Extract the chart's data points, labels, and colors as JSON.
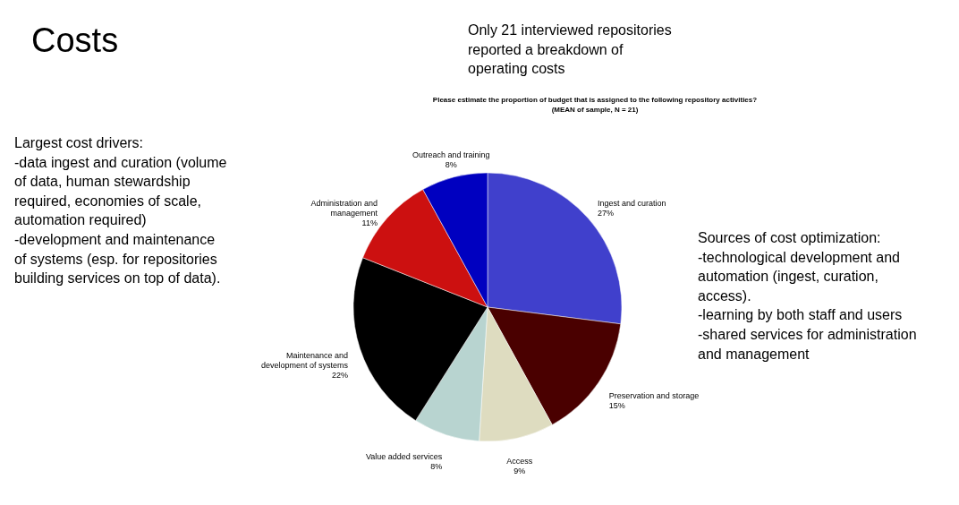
{
  "chart_data": {
    "type": "pie",
    "title": "Costs",
    "subtitle": "Please estimate the proportion of budget that is assigned to the following repository activities?\n(MEAN of sample, N = 21)",
    "categories": [
      "Ingest and curation",
      "Preservation and storage",
      "Access",
      "Value added services",
      "Maintenance and development of systems",
      "Administration and management",
      "Outreach and training"
    ],
    "values": [
      27,
      15,
      9,
      8,
      22,
      11,
      8
    ],
    "colors": [
      "#4040cc",
      "#4a0000",
      "#dedcc0",
      "#b8d4d0",
      "#000000",
      "#cc1010",
      "#0000c0"
    ],
    "value_labels": [
      "27%",
      "15%",
      "9%",
      "8%",
      "22%",
      "11%",
      "8%"
    ],
    "annotations": [
      "Only 21 interviewed repositories\nreported a breakdown of\noperating costs",
      "Largest cost drivers:\n-data ingest and curation (volume\nof data, human stewardship\nrequired, economies of scale,\nautomation required)\n-development and maintenance\nof systems (esp. for repositories\nbuilding services on top of data).",
      "Sources of cost optimization:\n-technological development and\nautomation (ingest, curation,\naccess).\n-learning by both staff and users\n-shared services for administration\nand management"
    ]
  }
}
